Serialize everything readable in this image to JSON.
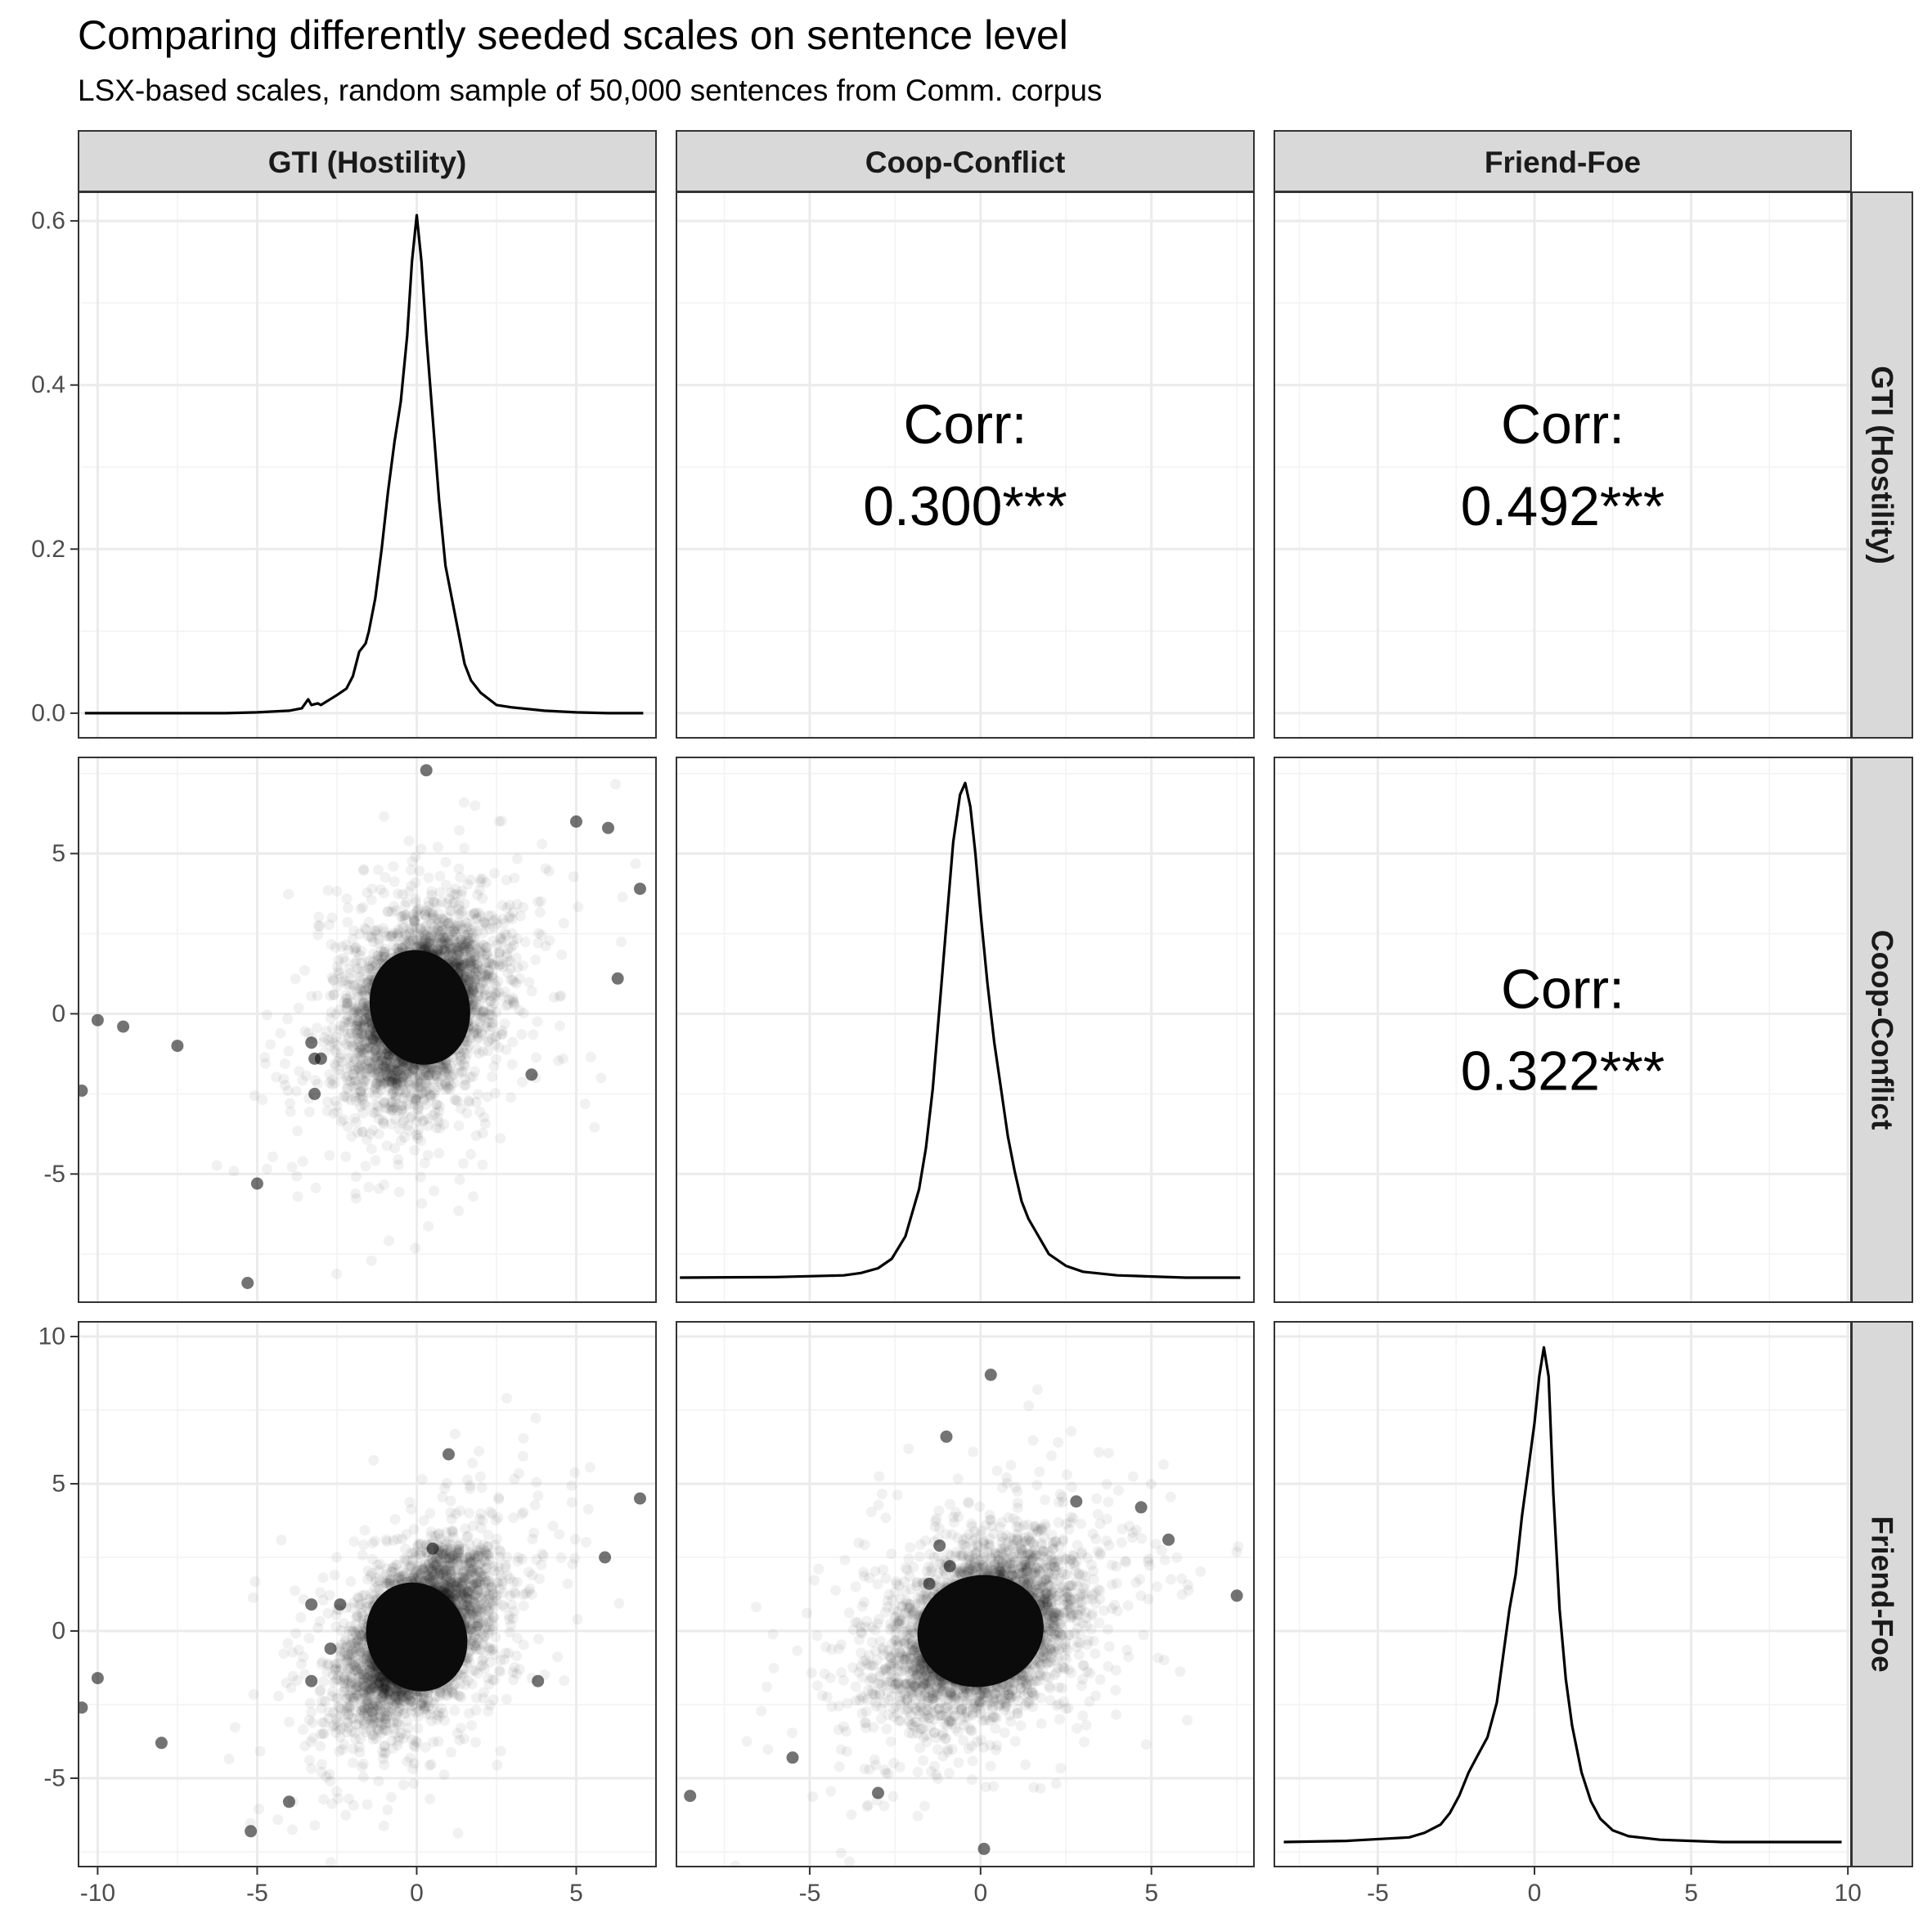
{
  "chart_data": {
    "type": "scatter",
    "title": "Comparing differently seeded scales on sentence level",
    "subtitle": "LSX-based scales, random sample of 50,000 sentences from Comm. corpus",
    "variables": [
      "GTI (Hostility)",
      "Coop-Conflict",
      "Friend-Foe"
    ],
    "layout": "3x3 pairs matrix (lower: scatter, diagonal: density, upper: correlation)",
    "sample_size": 50000,
    "x_ranges": {
      "GTI (Hostility)": [
        -10.6,
        7.5
      ],
      "Coop-Conflict": [
        -8.9,
        8.0
      ],
      "Friend-Foe": [
        -8.3,
        10.1
      ]
    },
    "row_ranges": {
      "GTI (Hostility)": [
        -0.03,
        0.635
      ],
      "Coop-Conflict": [
        -9.0,
        8.0
      ],
      "Friend-Foe": [
        -8.0,
        10.5
      ]
    },
    "x_ticks": {
      "GTI (Hostility)": [
        -10,
        -5,
        0,
        5
      ],
      "Coop-Conflict": [
        -5,
        0,
        5
      ],
      "Friend-Foe": [
        -5,
        0,
        5,
        10
      ]
    },
    "y_ticks": {
      "GTI (Hostility)": [
        0.0,
        0.2,
        0.4,
        0.6
      ],
      "Coop-Conflict": [
        -5,
        0,
        5
      ],
      "Friend-Foe": [
        -5,
        0,
        5,
        10
      ]
    },
    "x_tick_labels": {
      "GTI (Hostility)": [
        "-10",
        "-5",
        "0",
        "5"
      ],
      "Coop-Conflict": [
        "-5",
        "0",
        "5"
      ],
      "Friend-Foe": [
        "-5",
        "0",
        "5",
        "10"
      ]
    },
    "y_tick_labels": {
      "GTI (Hostility)": [
        "0.0",
        "0.2",
        "0.4",
        "0.6"
      ],
      "Coop-Conflict": [
        "-5",
        "0",
        "5"
      ],
      "Friend-Foe": [
        "-5",
        "0",
        "5",
        "10"
      ]
    },
    "correlations": [
      {
        "row": "GTI (Hostility)",
        "col": "Coop-Conflict",
        "label": "Corr:",
        "value": "0.300***"
      },
      {
        "row": "GTI (Hostility)",
        "col": "Friend-Foe",
        "label": "Corr:",
        "value": "0.492***"
      },
      {
        "row": "Coop-Conflict",
        "col": "Friend-Foe",
        "label": "Corr:",
        "value": "0.322***"
      }
    ],
    "densities": {
      "GTI (Hostility)": {
        "x": [
          -10.4,
          -8,
          -6,
          -5,
          -4,
          -3.6,
          -3.4,
          -3.3,
          -3.1,
          -3.0,
          -2.5,
          -2.2,
          -2.0,
          -1.8,
          -1.6,
          -1.5,
          -1.3,
          -1.1,
          -0.9,
          -0.7,
          -0.5,
          -0.3,
          -0.15,
          0,
          0.15,
          0.3,
          0.5,
          0.7,
          0.9,
          1.1,
          1.3,
          1.5,
          1.7,
          2.0,
          2.5,
          3.0,
          4,
          5,
          6,
          7.1
        ],
        "y": [
          0,
          0,
          0,
          0.001,
          0.003,
          0.006,
          0.017,
          0.01,
          0.012,
          0.01,
          0.022,
          0.03,
          0.045,
          0.075,
          0.085,
          0.1,
          0.14,
          0.2,
          0.27,
          0.33,
          0.38,
          0.46,
          0.55,
          0.607,
          0.55,
          0.46,
          0.36,
          0.26,
          0.18,
          0.14,
          0.1,
          0.06,
          0.04,
          0.025,
          0.01,
          0.007,
          0.003,
          0.001,
          0,
          0
        ]
      },
      "Coop-Conflict": {
        "x": [
          -8.8,
          -6,
          -4,
          -3.5,
          -3,
          -2.6,
          -2.2,
          -1.8,
          -1.6,
          -1.4,
          -1.2,
          -1.0,
          -0.8,
          -0.6,
          -0.45,
          -0.3,
          -0.15,
          0,
          0.2,
          0.4,
          0.6,
          0.8,
          1.0,
          1.2,
          1.4,
          1.7,
          2.0,
          2.5,
          3,
          4,
          5,
          6,
          7.6
        ],
        "y": [
          0,
          0.0005,
          0.002,
          0.004,
          0.008,
          0.016,
          0.035,
          0.075,
          0.11,
          0.16,
          0.23,
          0.3,
          0.37,
          0.41,
          0.42,
          0.4,
          0.36,
          0.31,
          0.25,
          0.2,
          0.16,
          0.12,
          0.09,
          0.065,
          0.05,
          0.035,
          0.02,
          0.01,
          0.005,
          0.002,
          0.001,
          0,
          0
        ]
      },
      "Friend-Foe": {
        "x": [
          -8.0,
          -6,
          -4,
          -3.5,
          -3.0,
          -2.7,
          -2.4,
          -2.1,
          -1.8,
          -1.5,
          -1.2,
          -1.0,
          -0.8,
          -0.6,
          -0.4,
          -0.2,
          0,
          0.15,
          0.3,
          0.45,
          0.6,
          0.8,
          1.0,
          1.2,
          1.5,
          1.8,
          2.1,
          2.5,
          3,
          4,
          5,
          6,
          8,
          9.8
        ],
        "y": [
          0,
          0.001,
          0.004,
          0.008,
          0.015,
          0.025,
          0.04,
          0.06,
          0.075,
          0.09,
          0.12,
          0.16,
          0.2,
          0.23,
          0.28,
          0.32,
          0.36,
          0.4,
          0.425,
          0.4,
          0.3,
          0.2,
          0.14,
          0.1,
          0.06,
          0.035,
          0.02,
          0.01,
          0.005,
          0.002,
          0.001,
          0,
          0,
          0
        ]
      }
    },
    "scatter_summary": [
      {
        "x_var": "GTI (Hostility)",
        "y_var": "Coop-Conflict",
        "center": [
          0.1,
          0.2
        ],
        "sd_x": 1.0,
        "sd_y": 1.25,
        "corr": 0.3,
        "outliers": [
          [
            -10.0,
            -0.2
          ],
          [
            -3.3,
            -0.9
          ],
          [
            -3.2,
            -1.4
          ],
          [
            -3.0,
            -1.4
          ],
          [
            -3.2,
            -2.5
          ],
          [
            -5.0,
            -5.3
          ],
          [
            -5.3,
            -8.4
          ],
          [
            -10.5,
            -2.4
          ],
          [
            7.0,
            3.9
          ],
          [
            6.0,
            5.8
          ],
          [
            5.0,
            6.0
          ],
          [
            0.3,
            7.6
          ],
          [
            6.3,
            1.1
          ],
          [
            3.6,
            -1.9
          ],
          [
            -9.2,
            -0.4
          ],
          [
            -7.5,
            -1.0
          ]
        ]
      },
      {
        "x_var": "GTI (Hostility)",
        "y_var": "Friend-Foe",
        "center": [
          0.0,
          -0.2
        ],
        "sd_x": 1.0,
        "sd_y": 1.3,
        "corr": 0.49,
        "outliers": [
          [
            -10.0,
            -1.6
          ],
          [
            -3.3,
            0.9
          ],
          [
            -3.3,
            -1.7
          ],
          [
            -2.4,
            0.9
          ],
          [
            -2.7,
            -0.6
          ],
          [
            0.5,
            2.8
          ],
          [
            7.0,
            4.5
          ],
          [
            -5.2,
            -6.8
          ],
          [
            -10.5,
            -2.6
          ],
          [
            5.9,
            2.5
          ],
          [
            3.8,
            -1.7
          ],
          [
            -8.0,
            -3.8
          ],
          [
            1.0,
            6.0
          ],
          [
            -4.0,
            -5.8
          ]
        ]
      },
      {
        "x_var": "Coop-Conflict",
        "y_var": "Friend-Foe",
        "center": [
          0.0,
          0.0
        ],
        "sd_x": 1.2,
        "sd_y": 1.3,
        "corr": 0.32,
        "outliers": [
          [
            -1.2,
            2.9
          ],
          [
            -0.9,
            2.2
          ],
          [
            -1.5,
            1.6
          ],
          [
            2.8,
            4.4
          ],
          [
            4.7,
            4.2
          ],
          [
            5.5,
            3.1
          ],
          [
            7.5,
            1.2
          ],
          [
            -8.5,
            -5.6
          ],
          [
            -5.5,
            -4.3
          ],
          [
            0.3,
            8.7
          ],
          [
            -1.0,
            6.6
          ],
          [
            0.1,
            -7.4
          ],
          [
            -3.0,
            -5.5
          ]
        ]
      }
    ]
  }
}
